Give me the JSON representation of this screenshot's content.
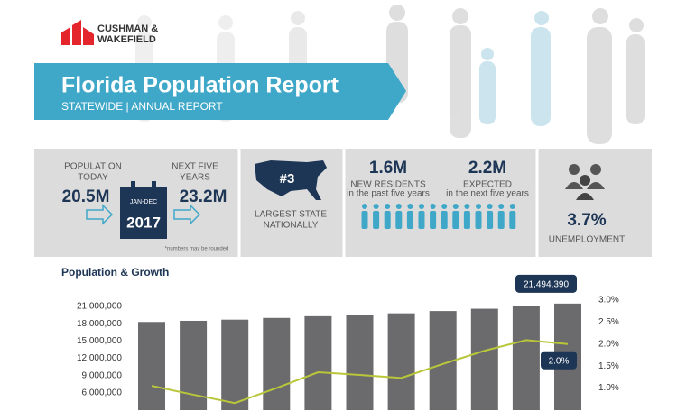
{
  "header": {
    "logo": [
      "CUSHMAN &",
      "WAKEFIELD"
    ],
    "title": "Florida Population Report",
    "subtitle": "STATEWIDE | ANNUAL REPORT"
  },
  "stats": {
    "population": {
      "today_label": [
        "POPULATION",
        "TODAY"
      ],
      "today": "20.5M",
      "next_label": [
        "NEXT FIVE",
        "YEARS"
      ],
      "next": "23.2M",
      "calendar_range": "JAN-DEC",
      "calendar_year": "2017",
      "note": "*numbers may be rounded"
    },
    "rank": {
      "value": "#3",
      "label": [
        "LARGEST STATE",
        "NATIONALLY"
      ]
    },
    "residents": {
      "past_value": "1.6M",
      "past_label": "NEW RESIDENTS",
      "past_note": "in the past five years",
      "expected_value": "2.2M",
      "expected_label": "EXPECTED",
      "expected_note": "in the next five years"
    },
    "unemployment": {
      "value": "3.7%",
      "label": "UNEMPLOYMENT"
    }
  },
  "chart_data": {
    "type": "bar",
    "title": "Population & Growth",
    "categories": [
      null,
      null,
      null,
      null,
      null,
      null,
      null,
      null,
      null,
      null,
      null
    ],
    "series": [
      {
        "color": "#6b6b6d",
        "values": [
          18300000,
          18500000,
          18700000,
          19000000,
          19300000,
          19500000,
          19800000,
          20200000,
          20600000,
          21000000,
          21494390
        ],
        "value_labels": [
          null,
          null,
          null,
          null,
          null,
          null,
          null,
          null,
          null,
          null,
          "21,494,390"
        ]
      },
      {
        "type": "line",
        "axis": "y2",
        "color": "#b9c63a",
        "values": [
          1.05,
          0.85,
          0.66,
          1.0,
          1.36,
          1.3,
          1.23,
          1.55,
          1.85,
          2.09,
          2.0
        ],
        "value_labels": [
          null,
          null,
          null,
          null,
          null,
          null,
          null,
          null,
          null,
          null,
          "2.0%"
        ]
      }
    ],
    "ylim": [
      3000000,
      21000000
    ],
    "yticks": [
      {
        "value": 21000000,
        "label": "21,000,000"
      },
      {
        "value": 18000000,
        "label": "18,000,000"
      },
      {
        "value": 15000000,
        "label": "15,000,000"
      },
      {
        "value": 12000000,
        "label": "12,000,000"
      },
      {
        "value": 9000000,
        "label": "9,000,000"
      },
      {
        "value": 6000000,
        "label": "6,000,000"
      }
    ],
    "y2lim": [
      0.5,
      3.0
    ],
    "y2ticks": [
      {
        "value": 3.0,
        "label": "3.0%"
      },
      {
        "value": 2.5,
        "label": "2.5%"
      },
      {
        "value": 2.0,
        "label": "2.0%"
      },
      {
        "value": 1.5,
        "label": "1.5%"
      },
      {
        "value": 1.0,
        "label": "1.0%"
      }
    ],
    "label_color": "#1e3656"
  }
}
